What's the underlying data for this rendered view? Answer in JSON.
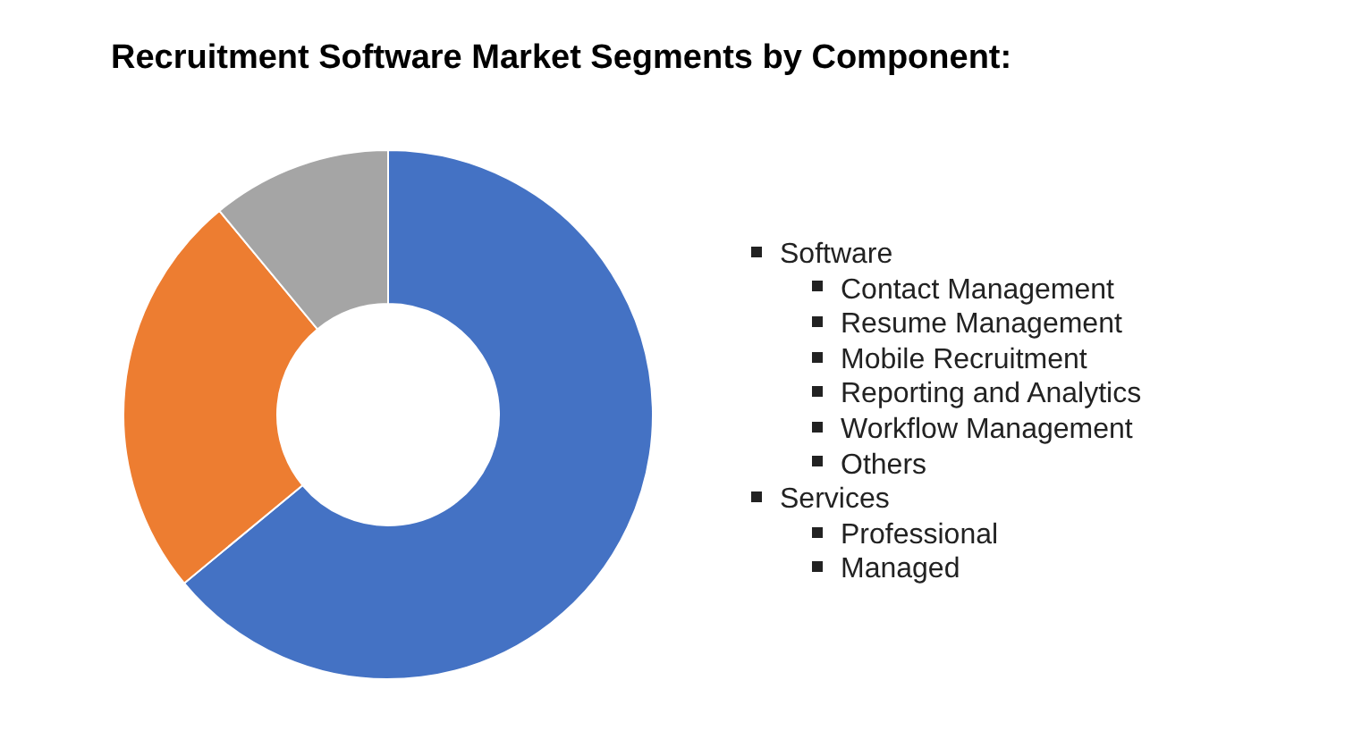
{
  "chart_data": {
    "type": "donut",
    "title": "Recruitment Software Market Segments by Component:",
    "categories": [
      null,
      null,
      null
    ],
    "values": [
      64,
      25,
      11
    ],
    "colors": [
      "#4472c4",
      "#ed7d31",
      "#a5a5a5"
    ],
    "annotations": [
      "Software",
      "Contact Management",
      "Resume Management",
      "Mobile Recruitment",
      "Reporting and Analytics",
      "Workflow Management",
      "Others",
      "Services",
      "Professional",
      "Managed"
    ]
  }
}
